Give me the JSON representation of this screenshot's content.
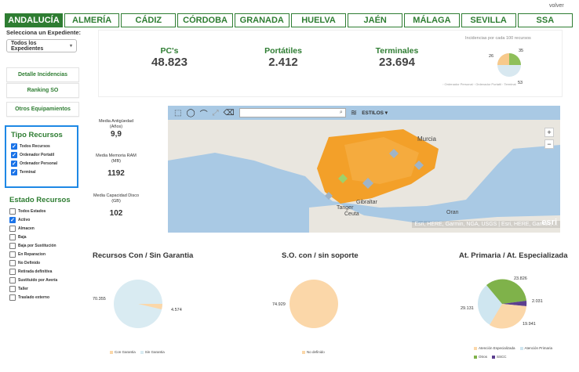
{
  "header": {
    "volver_label": "volver"
  },
  "regions": [
    "ANDALUCÍA",
    "ALMERÍA",
    "CÁDIZ",
    "CÓRDOBA",
    "GRANADA",
    "HUELVA",
    "JAÉN",
    "MÁLAGA",
    "SEVILLA",
    "SSA"
  ],
  "sidebar": {
    "select_label": "Selecciona un Expediente:",
    "select_value": "Todos los Expedientes",
    "buttons": [
      "Detalle Incidencias",
      "Ranking SO",
      "Otros Equipamientos"
    ],
    "tipo": {
      "title": "Tipo Recursos",
      "items": [
        {
          "label": "Todos Recursos",
          "checked": true
        },
        {
          "label": "Ordenador Portatil",
          "checked": true
        },
        {
          "label": "Ordenador Personal",
          "checked": true
        },
        {
          "label": "Terminal",
          "checked": true
        }
      ]
    },
    "estado": {
      "title": "Estado Recursos",
      "items": [
        {
          "label": "Todos Estados",
          "checked": false
        },
        {
          "label": "Activo",
          "checked": true
        },
        {
          "label": "Almacen",
          "checked": false
        },
        {
          "label": "Baja",
          "checked": false
        },
        {
          "label": "Baja por Sustitución",
          "checked": false
        },
        {
          "label": "En Reparacion",
          "checked": false
        },
        {
          "label": "No Definido",
          "checked": false
        },
        {
          "label": "Retirada definitiva",
          "checked": false
        },
        {
          "label": "Sustituido por Avería",
          "checked": false
        },
        {
          "label": "Taller",
          "checked": false
        },
        {
          "label": "Traslado externo",
          "checked": false
        }
      ]
    }
  },
  "kpis": [
    {
      "label": "PC's",
      "value": "48.823"
    },
    {
      "label": "Portátiles",
      "value": "2.412"
    },
    {
      "label": "Terminales",
      "value": "23.694"
    }
  ],
  "incidencias": {
    "title": "Incidencias por cada 100 recursos",
    "legend": "◦ Ordenador Personal ◦ Ordenador Portatil ◦ Terminal",
    "labels": [
      "26",
      "35",
      "53"
    ],
    "colors": [
      "#f7c98b",
      "#8fbf5a",
      "#d8e8f0"
    ]
  },
  "stats": [
    {
      "label": "Media Antigüedad\n(Años)",
      "value": "9,9"
    },
    {
      "label": "Media Memoria RAM\n(MB)",
      "value": "1192"
    },
    {
      "label": "Media Capacidad Disco\n(GB)",
      "value": "102"
    }
  ],
  "map": {
    "estilos_label": "ESTILOS ▾",
    "attribution": "Esri, HERE, Garmin, NGA, USGS | Esri, HERE, Garmin, ...",
    "esri_logo": "esri",
    "places": [
      "Murcia",
      "Tanger",
      "Ceuta",
      "Oran",
      "Gibraltar"
    ],
    "zoom_in": "+",
    "zoom_out": "−",
    "search_icon": "search-icon",
    "marker_color": "#f39c1f"
  },
  "charts": {
    "garantia": {
      "title": "Recursos Con / Sin Garantia",
      "labels": [
        "70.355",
        "4.574"
      ],
      "values": [
        70355,
        4574
      ],
      "legend": [
        "Con Garantia",
        "Sin Garantia"
      ],
      "colors": [
        "#d9ebf2",
        "#fbd7a9"
      ]
    },
    "soporte": {
      "title": "S.O. con / sin soporte",
      "labels": [
        "74.929"
      ],
      "values": [
        74929
      ],
      "legend": [
        "No definido"
      ],
      "colors": [
        "#fbd7a9"
      ]
    },
    "atencion": {
      "title": "At. Primaria / At. Especializada",
      "labels": [
        "23.826",
        "2.031",
        "19.941",
        "29.131"
      ],
      "values": [
        23826,
        2031,
        19941,
        29131
      ],
      "legend": [
        "Atención Especializada",
        "Atención Primaria",
        "Otros",
        "SSCC"
      ],
      "colors": [
        "#7fb24a",
        "#5c3f8f",
        "#fbd7a9",
        "#cfe6f0"
      ]
    }
  }
}
